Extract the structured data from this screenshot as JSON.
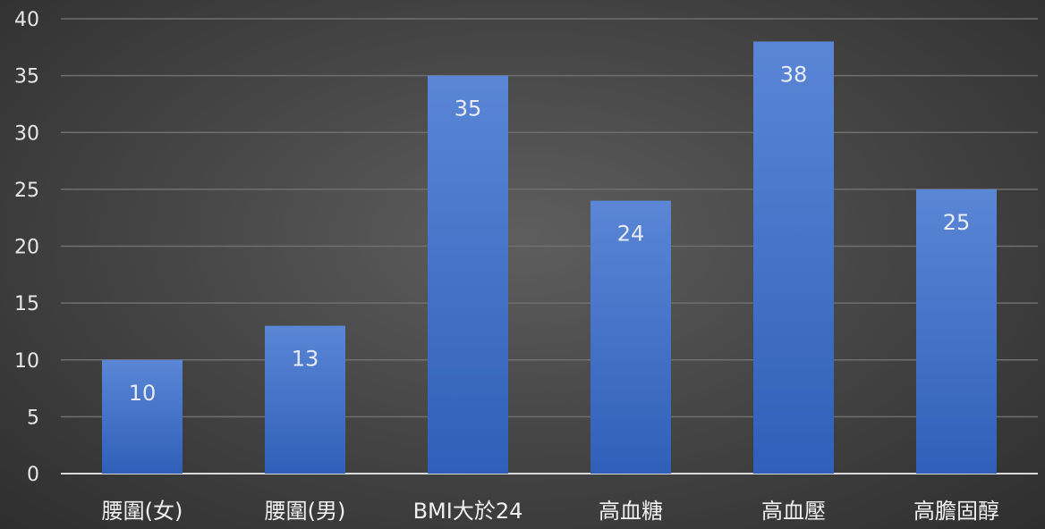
{
  "chart_data": {
    "type": "bar",
    "title": "",
    "xlabel": "",
    "ylabel": "",
    "categories": [
      "腰圍(女)",
      "腰圍(男)",
      "BMI大於24",
      "高血糖",
      "高血壓",
      "高膽固醇"
    ],
    "values": [
      10,
      13,
      35,
      24,
      38,
      25
    ],
    "ylim": [
      0,
      40
    ],
    "yticks": [
      0,
      5,
      10,
      15,
      20,
      25,
      30,
      35,
      40
    ],
    "grid": true,
    "legend": "none",
    "data_labels": true,
    "colors": {
      "bar_top": "#5b86d6",
      "bar_bottom": "#2f5fb8",
      "background": "#474747",
      "gridline": "#6f6f6f",
      "text": "#f0f0f0"
    }
  }
}
